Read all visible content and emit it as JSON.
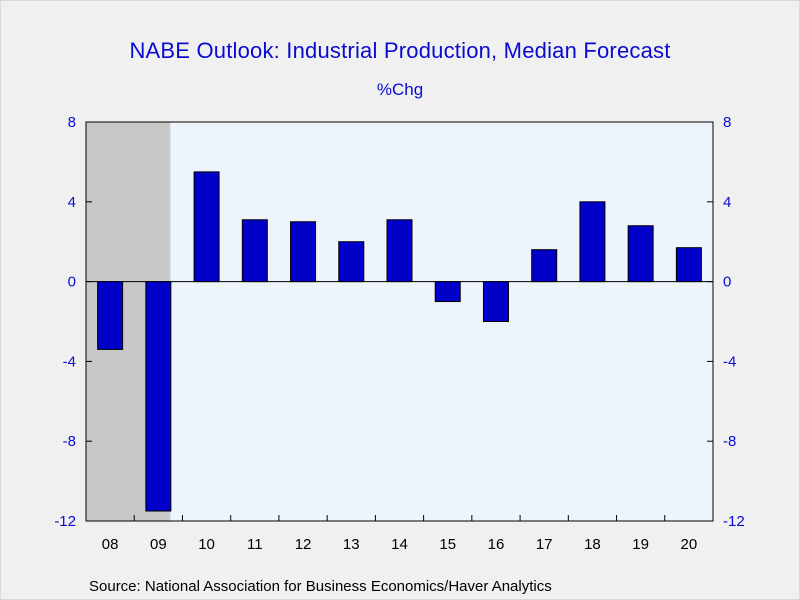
{
  "chart_data": {
    "type": "bar",
    "title": "NABE Outlook: Industrial Production, Median Forecast",
    "subtitle": "%Chg",
    "categories": [
      "08",
      "09",
      "10",
      "11",
      "12",
      "13",
      "14",
      "15",
      "16",
      "17",
      "18",
      "19",
      "20"
    ],
    "values": [
      -3.4,
      -11.5,
      5.5,
      3.1,
      3.0,
      2.0,
      3.1,
      -1.0,
      -2.0,
      1.6,
      4.0,
      2.8,
      1.7
    ],
    "ylim": [
      -12,
      8
    ],
    "yticks": [
      8,
      4,
      0,
      -4,
      -8,
      -12
    ],
    "shaded_categories": [
      "08",
      "09"
    ],
    "grid": false,
    "source": "Source:  National Association for Business Economics/Haver Analytics",
    "colors": {
      "bar": "#0000c8",
      "plot_bg": "#eef4fc",
      "shade": "#c8c8c8",
      "text": "#0a0ad0"
    }
  }
}
